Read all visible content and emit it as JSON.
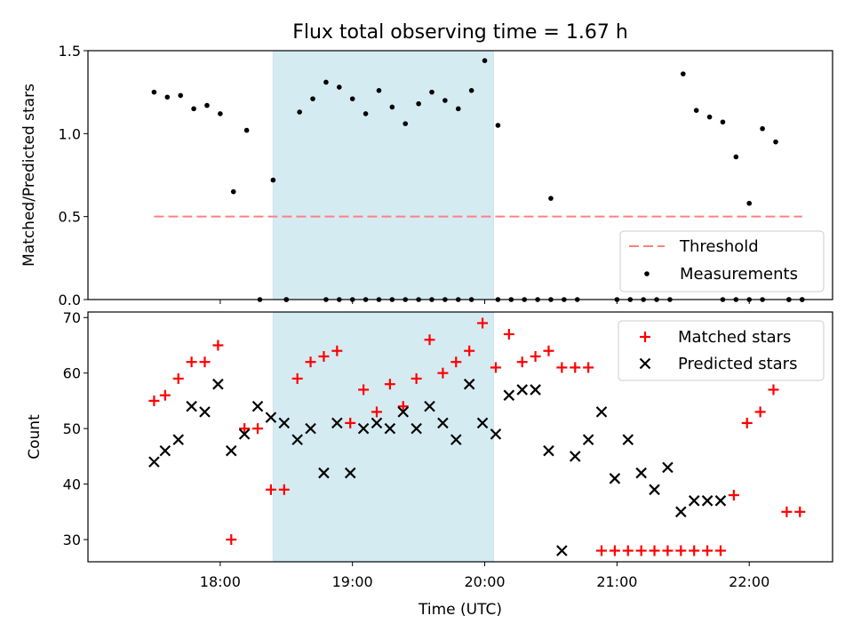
{
  "chart_data": [
    {
      "type": "scatter",
      "title": "Flux total observing time = 1.67 h",
      "ylabel": "Matched/Predicted stars",
      "ylim": [
        0.0,
        1.5
      ],
      "yticks": [
        "0.0",
        "0.5",
        "1.0",
        "1.5"
      ],
      "x_axis": "time of day (hours)",
      "grid": false,
      "legend_position": "bottom-right",
      "highlight_span": {
        "start": "18:24",
        "end": "20:04",
        "color": "#add8e6"
      },
      "threshold": {
        "name": "Threshold",
        "value": 0.5,
        "from": "17:30",
        "to": "22:24",
        "color": "#ff8080"
      },
      "series": [
        {
          "name": "Measurements",
          "color": "#000000",
          "x": [
            "17:30",
            "17:36",
            "17:42",
            "17:48",
            "17:54",
            "18:00",
            "18:06",
            "18:12",
            "18:18",
            "18:24",
            "18:30",
            "18:36",
            "18:42",
            "18:48",
            "18:54",
            "19:00",
            "19:06",
            "19:12",
            "19:18",
            "19:24",
            "19:30",
            "19:36",
            "19:42",
            "19:48",
            "19:54",
            "20:00",
            "20:06",
            "20:30",
            "21:30",
            "21:36",
            "21:42",
            "21:48",
            "21:54",
            "22:00",
            "22:06",
            "22:12",
            "22:18",
            "22:24"
          ],
          "y": [
            1.25,
            1.22,
            1.23,
            1.15,
            1.17,
            1.12,
            0.65,
            1.02,
            0.0,
            0.72,
            0.0,
            1.13,
            1.21,
            1.31,
            1.28,
            1.21,
            1.12,
            1.26,
            1.16,
            1.06,
            1.18,
            1.25,
            1.2,
            1.15,
            1.26,
            1.44,
            1.05,
            0.61,
            1.36,
            1.14,
            1.1,
            1.07,
            0.86,
            0.58,
            1.03,
            0.95,
            0.0,
            0.0
          ]
        },
        {
          "name": "",
          "color": "#000000",
          "x": [
            "18:30",
            "18:48",
            "18:54",
            "19:00",
            "19:06",
            "19:12",
            "19:18",
            "19:24",
            "19:30",
            "19:36",
            "19:42",
            "19:48",
            "19:54",
            "20:06",
            "20:12",
            "20:18",
            "20:24",
            "20:30",
            "20:36",
            "20:42",
            "21:00",
            "21:06",
            "21:12",
            "21:18",
            "21:24",
            "21:48",
            "21:54",
            "22:00",
            "22:06",
            "22:18",
            "22:24"
          ],
          "y": [
            0,
            0,
            0,
            0,
            0,
            0,
            0,
            0,
            0,
            0,
            0,
            0,
            0,
            0,
            0,
            0,
            0,
            0,
            0,
            0,
            0,
            0,
            0,
            0,
            0,
            0,
            0,
            0,
            0,
            0,
            0
          ]
        }
      ]
    },
    {
      "type": "scatter",
      "xlabel": "Time (UTC)",
      "ylabel": "Count",
      "ylim": [
        26,
        71
      ],
      "yticks": [
        "30",
        "40",
        "50",
        "60",
        "70"
      ],
      "xticks": [
        "18:00",
        "19:00",
        "20:00",
        "21:00",
        "22:00"
      ],
      "x_axis": "time of day (hours)",
      "grid": false,
      "legend_position": "top-right",
      "highlight_span": {
        "start": "18:24",
        "end": "20:04",
        "color": "#add8e6"
      },
      "series": [
        {
          "name": "Matched stars",
          "marker": "+",
          "color": "#ff0000",
          "x": [
            "17:30",
            "17:35",
            "17:41",
            "17:47",
            "17:53",
            "17:59",
            "18:05",
            "18:11",
            "18:17",
            "18:23",
            "18:29",
            "18:35",
            "18:41",
            "18:47",
            "18:53",
            "18:59",
            "19:05",
            "19:11",
            "19:17",
            "19:23",
            "19:29",
            "19:35",
            "19:41",
            "19:47",
            "19:53",
            "19:59",
            "20:05",
            "20:11",
            "20:17",
            "20:23",
            "20:29",
            "20:35",
            "20:41",
            "20:47",
            "20:53",
            "20:59",
            "21:05",
            "21:11",
            "21:17",
            "21:23",
            "21:29",
            "21:35",
            "21:41",
            "21:47",
            "21:53",
            "21:59",
            "22:05",
            "22:11",
            "22:17",
            "22:23"
          ],
          "y": [
            55,
            56,
            59,
            62,
            62,
            65,
            30,
            50,
            50,
            39,
            39,
            59,
            62,
            63,
            64,
            51,
            57,
            53,
            58,
            54,
            59,
            66,
            60,
            62,
            64,
            69,
            61,
            67,
            62,
            63,
            64,
            61,
            61,
            61,
            28,
            28,
            28,
            28,
            28,
            28,
            28,
            28,
            28,
            28,
            38,
            51,
            53,
            57,
            35,
            35
          ]
        },
        {
          "name": "Predicted stars",
          "marker": "x",
          "color": "#000000",
          "x": [
            "17:30",
            "17:35",
            "17:41",
            "17:47",
            "17:53",
            "17:59",
            "18:05",
            "18:11",
            "18:17",
            "18:23",
            "18:29",
            "18:35",
            "18:41",
            "18:47",
            "18:53",
            "18:59",
            "19:05",
            "19:11",
            "19:17",
            "19:23",
            "19:29",
            "19:35",
            "19:41",
            "19:47",
            "19:53",
            "19:59",
            "20:05",
            "20:11",
            "20:17",
            "20:23",
            "20:29",
            "20:35",
            "20:41",
            "20:47",
            "20:53",
            "20:59",
            "21:05",
            "21:11",
            "21:17",
            "21:23",
            "21:29",
            "21:35",
            "21:41",
            "21:47"
          ],
          "y": [
            44,
            46,
            48,
            54,
            53,
            58,
            46,
            49,
            54,
            52,
            51,
            48,
            50,
            42,
            51,
            42,
            50,
            51,
            50,
            53,
            50,
            54,
            51,
            48,
            58,
            51,
            49,
            56,
            57,
            57,
            46,
            28,
            45,
            48,
            53,
            41,
            48,
            42,
            39,
            43,
            35,
            37,
            37,
            37
          ]
        }
      ]
    }
  ]
}
